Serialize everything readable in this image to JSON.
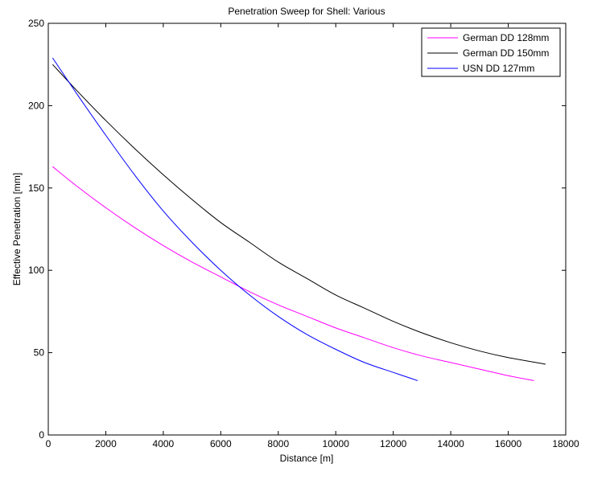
{
  "chart_data": {
    "type": "line",
    "title": "Penetration Sweep for Shell: Various",
    "xlabel": "Distance [m]",
    "ylabel": "Effective Penetration [mm]",
    "xlim": [
      0,
      18000
    ],
    "ylim": [
      0,
      250
    ],
    "xticks": [
      "0",
      "2000",
      "4000",
      "6000",
      "8000",
      "10000",
      "12000",
      "14000",
      "16000",
      "18000"
    ],
    "yticks": [
      "0",
      "50",
      "100",
      "150",
      "200",
      "250"
    ],
    "grid": false,
    "legend_position": "top-right",
    "series": [
      {
        "name": "German DD 128mm",
        "color": "#ff00ff",
        "x": [
          150,
          1000,
          2000,
          3000,
          4000,
          5000,
          6000,
          7000,
          8000,
          9000,
          10000,
          11000,
          12000,
          13000,
          14000,
          15000,
          16000,
          16900
        ],
        "y": [
          163,
          151,
          138,
          126,
          115,
          105,
          96,
          87,
          79,
          72,
          65,
          59,
          53,
          48,
          44,
          40,
          36,
          33
        ]
      },
      {
        "name": "German DD 150mm",
        "color": "#000000",
        "x": [
          150,
          1000,
          2000,
          3000,
          4000,
          5000,
          6000,
          7000,
          8000,
          9000,
          10000,
          11000,
          12000,
          13000,
          14000,
          15000,
          16000,
          17300
        ],
        "y": [
          225,
          209,
          191,
          174,
          158,
          143,
          129,
          117,
          105,
          95,
          85,
          77,
          69,
          62,
          56,
          51,
          47,
          43
        ]
      },
      {
        "name": "USN DD 127mm",
        "color": "#0000ff",
        "x": [
          150,
          1000,
          2000,
          3000,
          4000,
          5000,
          6000,
          7000,
          8000,
          9000,
          10000,
          11000,
          12000,
          12850
        ],
        "y": [
          229,
          207,
          182,
          158,
          136,
          117,
          100,
          85,
          72,
          61,
          52,
          44,
          38,
          33
        ]
      }
    ]
  }
}
